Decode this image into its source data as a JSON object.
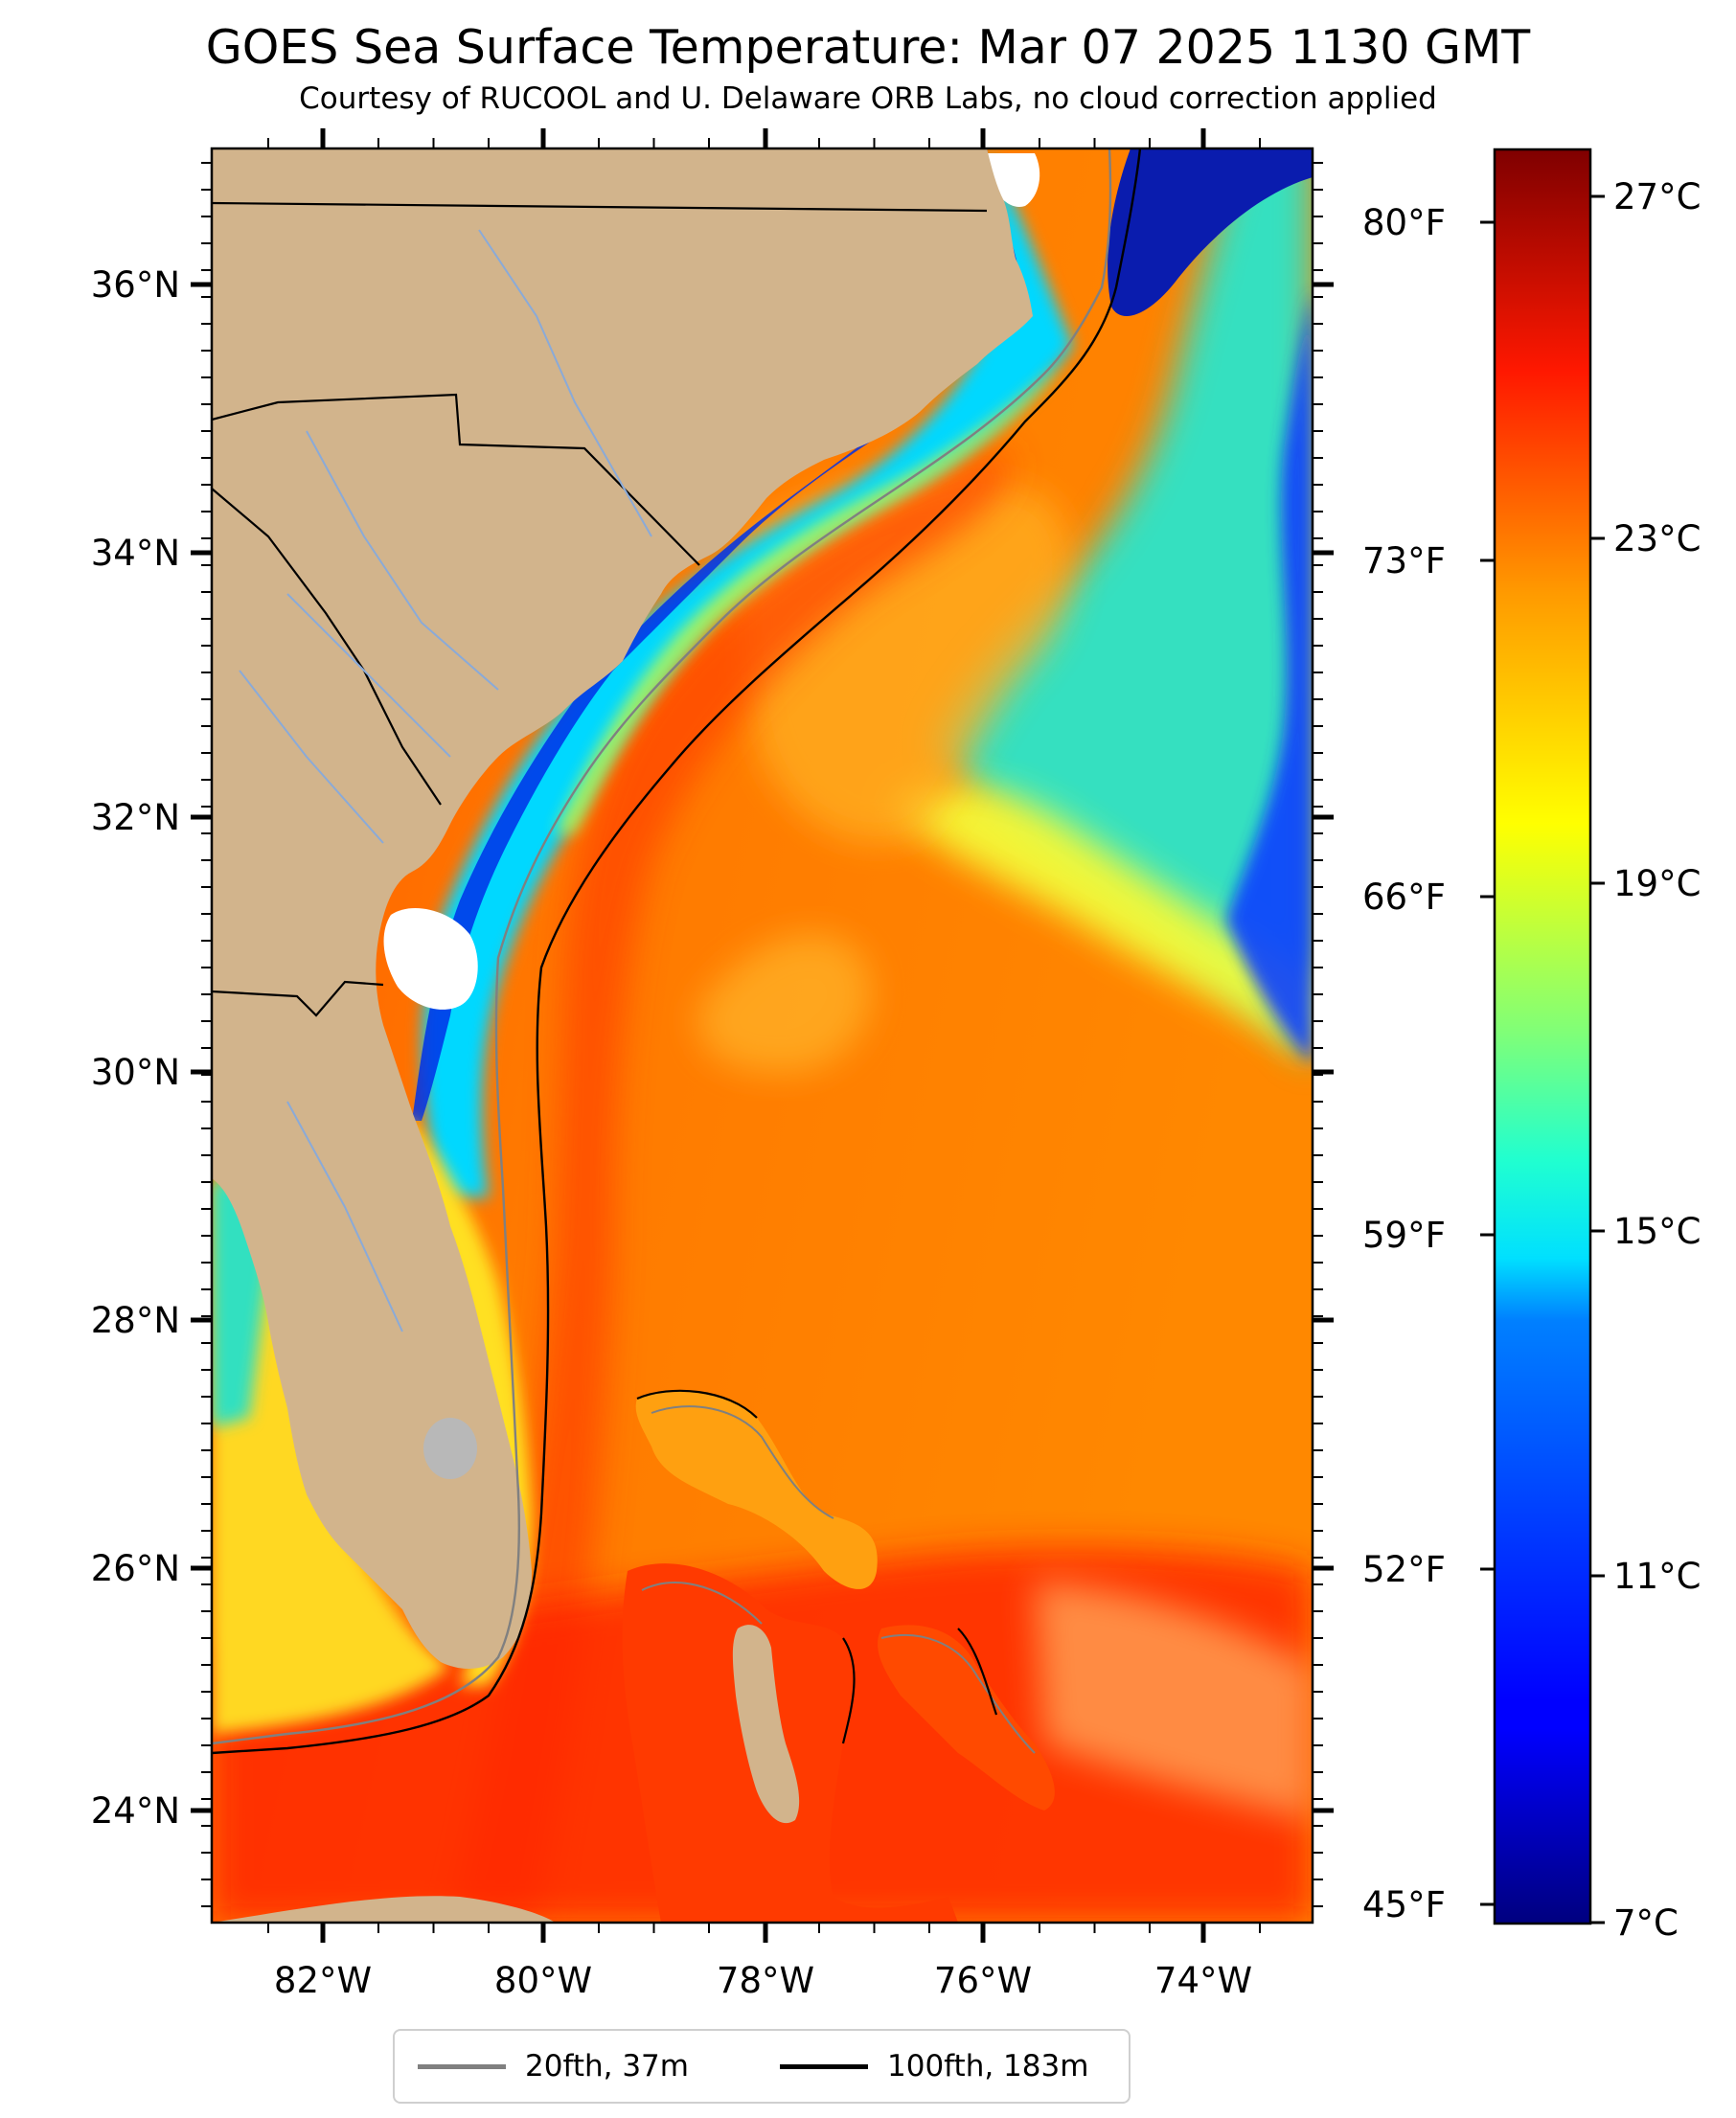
{
  "title": "GOES Sea Surface Temperature: Mar 07 2025 1130 GMT",
  "subtitle": "Courtesy of RUCOOL and U. Delaware ORB Labs, no cloud correction applied",
  "map": {
    "lon_range": [
      -83.0,
      -73.0
    ],
    "lat_range": [
      23.0,
      37.0
    ],
    "lat_ticks": [
      "36°N",
      "34°N",
      "32°N",
      "30°N",
      "28°N",
      "26°N",
      "24°N"
    ],
    "lon_ticks": [
      "82°W",
      "80°W",
      "78°W",
      "76°W",
      "74°W"
    ],
    "fahrenheit_ticks": [
      "80°F",
      "73°F",
      "66°F",
      "59°F",
      "52°F",
      "45°F"
    ],
    "land_color": "#d2b48c",
    "cloud_color": "#ffffff"
  },
  "colorbar": {
    "range_c": [
      7,
      28
    ],
    "colormap": "jet",
    "ticks": [
      "27°C",
      "23°C",
      "19°C",
      "15°C",
      "11°C",
      "7°C"
    ]
  },
  "legend": {
    "items": [
      {
        "label": "20fth, 37m",
        "color": "#808080"
      },
      {
        "label": "100fth, 183m",
        "color": "#000000"
      }
    ]
  }
}
